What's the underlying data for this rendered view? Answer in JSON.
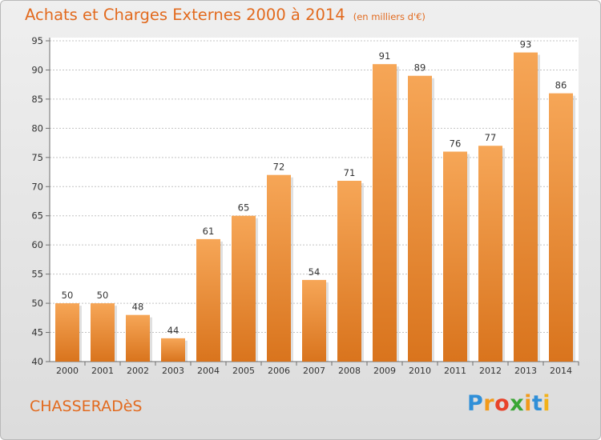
{
  "header": {
    "title": "Achats et Charges Externes 2000 à 2014",
    "subtitle": "(en milliers d'€)"
  },
  "footer": {
    "commune": "CHASSERADèS",
    "logo_letters": [
      "P",
      "r",
      "o",
      "x",
      "i",
      "t",
      "i"
    ],
    "logo_colors": [
      "#2f8fd8",
      "#f29a1a",
      "#e8432a",
      "#3aa635",
      "#f29a1a",
      "#2f8fd8",
      "#f2b21a"
    ]
  },
  "colors": {
    "bar_top": "#f6a657",
    "bar_bottom": "#d9741d",
    "accent": "#e26a1e",
    "grid": "#c4c4c4"
  },
  "chart_data": {
    "type": "bar",
    "categories": [
      "2000",
      "2001",
      "2002",
      "2003",
      "2004",
      "2005",
      "2006",
      "2007",
      "2008",
      "2009",
      "2010",
      "2011",
      "2012",
      "2013",
      "2014"
    ],
    "values": [
      50,
      50,
      48,
      44,
      61,
      65,
      72,
      54,
      71,
      91,
      89,
      76,
      77,
      93,
      86
    ],
    "ylim": [
      40,
      95
    ],
    "yticks": [
      40,
      45,
      50,
      55,
      60,
      65,
      70,
      75,
      80,
      85,
      90,
      95
    ],
    "grid": true,
    "legend": "none"
  }
}
